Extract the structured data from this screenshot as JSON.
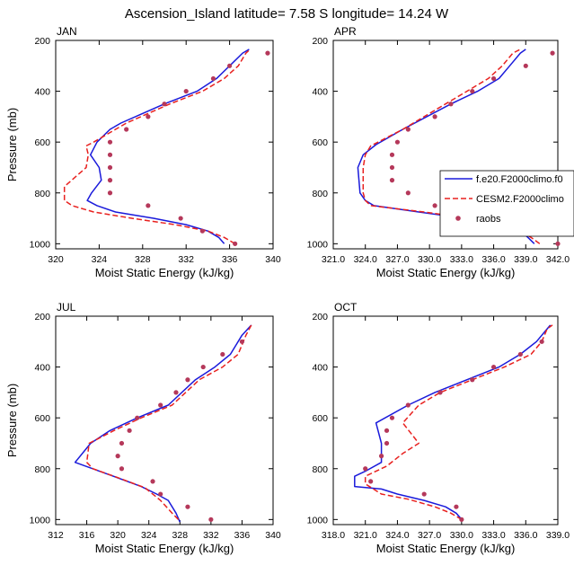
{
  "figure": {
    "title": "Ascension_Island  latitude= 7.58 S longitude= 14.24 W"
  },
  "legend": {
    "entries": [
      {
        "label": "f.e20.F2000climo.f0",
        "style": "solid-line",
        "color": "#1a1adb"
      },
      {
        "label": "CESM2.F2000climo",
        "style": "dashed-line",
        "color": "#e8211f"
      },
      {
        "label": "raobs",
        "style": "dot",
        "color": "#b5385a"
      }
    ]
  },
  "colors": {
    "model1": "#1a1adb",
    "model2": "#e8211f",
    "obs": "#b5385a"
  },
  "chart_data": [
    {
      "type": "line",
      "panel_label": "JAN",
      "xlabel": "Moist Static Energy (kJ/kg)",
      "ylabel": "Pressure (mb)",
      "xlim": [
        320,
        340
      ],
      "ylim": [
        1020,
        200
      ],
      "y_inverted": true,
      "xticks": [
        320,
        324,
        328,
        332,
        336,
        340
      ],
      "xtick_labels": [
        "320",
        "324",
        "328",
        "332",
        "336",
        "340"
      ],
      "yticks": [
        200,
        400,
        600,
        800,
        1000
      ],
      "ytick_labels": [
        "200",
        "400",
        "600",
        "800",
        "1000"
      ],
      "series": [
        {
          "name": "f.e20.F2000climo.f0",
          "style": "solid",
          "points": [
            [
              335.5,
              1000
            ],
            [
              335.0,
              975
            ],
            [
              334.0,
              950
            ],
            [
              332.0,
              925
            ],
            [
              329.0,
              900
            ],
            [
              325.5,
              875
            ],
            [
              323.8,
              850
            ],
            [
              322.9,
              830
            ],
            [
              323.3,
              800
            ],
            [
              324.2,
              750
            ],
            [
              324.0,
              700
            ],
            [
              323.2,
              650
            ],
            [
              323.8,
              600
            ],
            [
              325.0,
              550
            ],
            [
              326.0,
              525
            ],
            [
              330.0,
              450
            ],
            [
              333.0,
              400
            ],
            [
              334.8,
              350
            ],
            [
              336.0,
              300
            ],
            [
              337.2,
              250
            ],
            [
              337.8,
              235
            ]
          ]
        },
        {
          "name": "CESM2.F2000climo",
          "style": "dashed",
          "points": [
            [
              336.5,
              1000
            ],
            [
              335.5,
              975
            ],
            [
              334.0,
              950
            ],
            [
              331.0,
              925
            ],
            [
              327.0,
              900
            ],
            [
              323.5,
              875
            ],
            [
              321.5,
              850
            ],
            [
              320.8,
              830
            ],
            [
              320.8,
              775
            ],
            [
              322.8,
              700
            ],
            [
              323.0,
              650
            ],
            [
              322.8,
              615
            ],
            [
              323.5,
              600
            ],
            [
              325.5,
              550
            ],
            [
              326.5,
              525
            ],
            [
              330.5,
              450
            ],
            [
              333.5,
              400
            ],
            [
              335.5,
              350
            ],
            [
              336.8,
              300
            ],
            [
              337.5,
              250
            ],
            [
              337.9,
              235
            ]
          ]
        },
        {
          "name": "raobs",
          "style": "points",
          "points": [
            [
              336.5,
              1000
            ],
            [
              333.5,
              950
            ],
            [
              331.5,
              900
            ],
            [
              328.5,
              850
            ],
            [
              325.0,
              800
            ],
            [
              325.0,
              750
            ],
            [
              325.0,
              700
            ],
            [
              325.0,
              650
            ],
            [
              325.0,
              600
            ],
            [
              326.5,
              550
            ],
            [
              328.5,
              500
            ],
            [
              330.0,
              450
            ],
            [
              332.0,
              400
            ],
            [
              334.5,
              350
            ],
            [
              336.0,
              300
            ],
            [
              339.5,
              250
            ]
          ]
        }
      ]
    },
    {
      "type": "line",
      "panel_label": "APR",
      "xlabel": "Moist Static Energy (kJ/kg)",
      "ylabel": "",
      "xlim": [
        321,
        342
      ],
      "ylim": [
        1020,
        200
      ],
      "y_inverted": true,
      "xticks": [
        321,
        324,
        327,
        330,
        333,
        336,
        339,
        342
      ],
      "xtick_labels": [
        "321.0",
        "324.0",
        "327.0",
        "330.0",
        "333.0",
        "336.0",
        "339.0",
        "342.0"
      ],
      "yticks": [
        200,
        400,
        600,
        800,
        1000
      ],
      "ytick_labels": [
        "200",
        "400",
        "600",
        "800",
        "1000"
      ],
      "series": [
        {
          "name": "f.e20.F2000climo.f0",
          "style": "solid",
          "points": [
            [
              339.8,
              1000
            ],
            [
              339.2,
              975
            ],
            [
              338.5,
              950
            ],
            [
              335.0,
              910
            ],
            [
              329.0,
              875
            ],
            [
              324.8,
              850
            ],
            [
              324.0,
              830
            ],
            [
              323.5,
              800
            ],
            [
              323.4,
              750
            ],
            [
              323.3,
              700
            ],
            [
              323.8,
              650
            ],
            [
              325.0,
              610
            ],
            [
              327.5,
              550
            ],
            [
              332.0,
              450
            ],
            [
              334.5,
              400
            ],
            [
              336.5,
              350
            ],
            [
              337.5,
              300
            ],
            [
              338.5,
              250
            ],
            [
              339.0,
              235
            ]
          ]
        },
        {
          "name": "CESM2.F2000climo",
          "style": "dashed",
          "points": [
            [
              340.3,
              1000
            ],
            [
              339.5,
              975
            ],
            [
              338.5,
              950
            ],
            [
              335.5,
              910
            ],
            [
              329.5,
              875
            ],
            [
              324.5,
              850
            ],
            [
              324.0,
              830
            ],
            [
              323.8,
              800
            ],
            [
              323.8,
              700
            ],
            [
              324.0,
              650
            ],
            [
              324.5,
              615
            ],
            [
              327.5,
              550
            ],
            [
              331.5,
              450
            ],
            [
              333.5,
              400
            ],
            [
              335.5,
              350
            ],
            [
              336.8,
              300
            ],
            [
              337.8,
              250
            ],
            [
              338.5,
              235
            ]
          ]
        },
        {
          "name": "raobs",
          "style": "points",
          "points": [
            [
              342.0,
              1000
            ],
            [
              339.0,
              950
            ],
            [
              335.0,
              900
            ],
            [
              330.5,
              850
            ],
            [
              328.0,
              800
            ],
            [
              326.5,
              750
            ],
            [
              326.5,
              700
            ],
            [
              326.5,
              650
            ],
            [
              327.0,
              600
            ],
            [
              328.0,
              550
            ],
            [
              330.5,
              500
            ],
            [
              332.0,
              450
            ],
            [
              334.0,
              400
            ],
            [
              336.0,
              350
            ],
            [
              339.0,
              300
            ],
            [
              341.5,
              250
            ]
          ]
        }
      ]
    },
    {
      "type": "line",
      "panel_label": "JUL",
      "xlabel": "Moist Static Energy (kJ/kg)",
      "ylabel": "Pressure (mb)",
      "xlim": [
        312,
        340
      ],
      "ylim": [
        1020,
        200
      ],
      "y_inverted": true,
      "xticks": [
        312,
        316,
        320,
        324,
        328,
        332,
        336,
        340
      ],
      "xtick_labels": [
        "312",
        "316",
        "320",
        "324",
        "328",
        "332",
        "336",
        "340"
      ],
      "yticks": [
        200,
        400,
        600,
        800,
        1000
      ],
      "ytick_labels": [
        "200",
        "400",
        "600",
        "800",
        "1000"
      ],
      "series": [
        {
          "name": "f.e20.F2000climo.f0",
          "style": "solid",
          "points": [
            [
              328.0,
              1010
            ],
            [
              327.5,
              975
            ],
            [
              326.5,
              925
            ],
            [
              325.0,
              900
            ],
            [
              323.0,
              870
            ],
            [
              319.0,
              825
            ],
            [
              314.5,
              775
            ],
            [
              316.5,
              700
            ],
            [
              319.0,
              650
            ],
            [
              322.5,
              600
            ],
            [
              326.5,
              550
            ],
            [
              330.0,
              450
            ],
            [
              332.5,
              400
            ],
            [
              334.5,
              350
            ],
            [
              336.0,
              275
            ],
            [
              337.2,
              235
            ]
          ]
        },
        {
          "name": "CESM2.F2000climo",
          "style": "dashed",
          "points": [
            [
              327.8,
              1000
            ],
            [
              327.0,
              975
            ],
            [
              325.5,
              925
            ],
            [
              323.5,
              875
            ],
            [
              320.0,
              835
            ],
            [
              316.8,
              800
            ],
            [
              316.0,
              775
            ],
            [
              316.3,
              700
            ],
            [
              319.5,
              650
            ],
            [
              323.0,
              600
            ],
            [
              327.0,
              550
            ],
            [
              330.5,
              450
            ],
            [
              333.5,
              400
            ],
            [
              335.5,
              350
            ],
            [
              336.5,
              275
            ],
            [
              337.2,
              235
            ]
          ]
        },
        {
          "name": "raobs",
          "style": "points",
          "points": [
            [
              332.0,
              1000
            ],
            [
              329.0,
              950
            ],
            [
              325.5,
              900
            ],
            [
              324.5,
              850
            ],
            [
              320.5,
              800
            ],
            [
              320.0,
              750
            ],
            [
              320.5,
              700
            ],
            [
              321.5,
              650
            ],
            [
              322.5,
              600
            ],
            [
              325.5,
              550
            ],
            [
              327.5,
              500
            ],
            [
              329.0,
              450
            ],
            [
              331.0,
              400
            ],
            [
              333.5,
              350
            ],
            [
              336.0,
              300
            ]
          ]
        }
      ]
    },
    {
      "type": "line",
      "panel_label": "OCT",
      "xlabel": "Moist Static Energy (kJ/kg)",
      "ylabel": "",
      "xlim": [
        318,
        339
      ],
      "ylim": [
        1020,
        200
      ],
      "y_inverted": true,
      "xticks": [
        318,
        321,
        324,
        327,
        330,
        333,
        336,
        339
      ],
      "xtick_labels": [
        "318.0",
        "321.0",
        "324.0",
        "327.0",
        "330.0",
        "333.0",
        "336.0",
        "339.0"
      ],
      "yticks": [
        200,
        400,
        600,
        800,
        1000
      ],
      "ytick_labels": [
        "200",
        "400",
        "600",
        "800",
        "1000"
      ],
      "series": [
        {
          "name": "f.e20.F2000climo.f0",
          "style": "solid",
          "points": [
            [
              330.0,
              1000
            ],
            [
              329.5,
              975
            ],
            [
              328.5,
              950
            ],
            [
              326.5,
              925
            ],
            [
              324.0,
              900
            ],
            [
              322.5,
              880
            ],
            [
              320.0,
              870
            ],
            [
              320.0,
              830
            ],
            [
              321.0,
              810
            ],
            [
              322.5,
              775
            ],
            [
              322.5,
              700
            ],
            [
              322.0,
              620
            ],
            [
              325.0,
              550
            ],
            [
              327.5,
              500
            ],
            [
              333.5,
              400
            ],
            [
              335.5,
              350
            ],
            [
              337.0,
              300
            ],
            [
              338.0,
              250
            ],
            [
              338.3,
              235
            ]
          ]
        },
        {
          "name": "CESM2.F2000climo",
          "style": "dashed",
          "points": [
            [
              330.0,
              1000
            ],
            [
              329.0,
              975
            ],
            [
              327.5,
              950
            ],
            [
              325.0,
              920
            ],
            [
              322.5,
              900
            ],
            [
              321.0,
              860
            ],
            [
              321.0,
              830
            ],
            [
              323.0,
              790
            ],
            [
              324.5,
              740
            ],
            [
              326.0,
              700
            ],
            [
              324.5,
              620
            ],
            [
              326.0,
              550
            ],
            [
              328.0,
              500
            ],
            [
              334.0,
              400
            ],
            [
              336.5,
              350
            ],
            [
              337.5,
              300
            ],
            [
              338.0,
              250
            ],
            [
              338.5,
              235
            ]
          ]
        },
        {
          "name": "raobs",
          "style": "points",
          "points": [
            [
              330.0,
              1000
            ],
            [
              329.5,
              950
            ],
            [
              326.5,
              900
            ],
            [
              321.5,
              850
            ],
            [
              321.0,
              800
            ],
            [
              322.5,
              750
            ],
            [
              323.0,
              700
            ],
            [
              323.0,
              650
            ],
            [
              323.5,
              600
            ],
            [
              325.0,
              550
            ],
            [
              328.0,
              500
            ],
            [
              331.0,
              450
            ],
            [
              333.0,
              400
            ],
            [
              335.5,
              350
            ],
            [
              337.5,
              300
            ]
          ]
        }
      ]
    }
  ]
}
